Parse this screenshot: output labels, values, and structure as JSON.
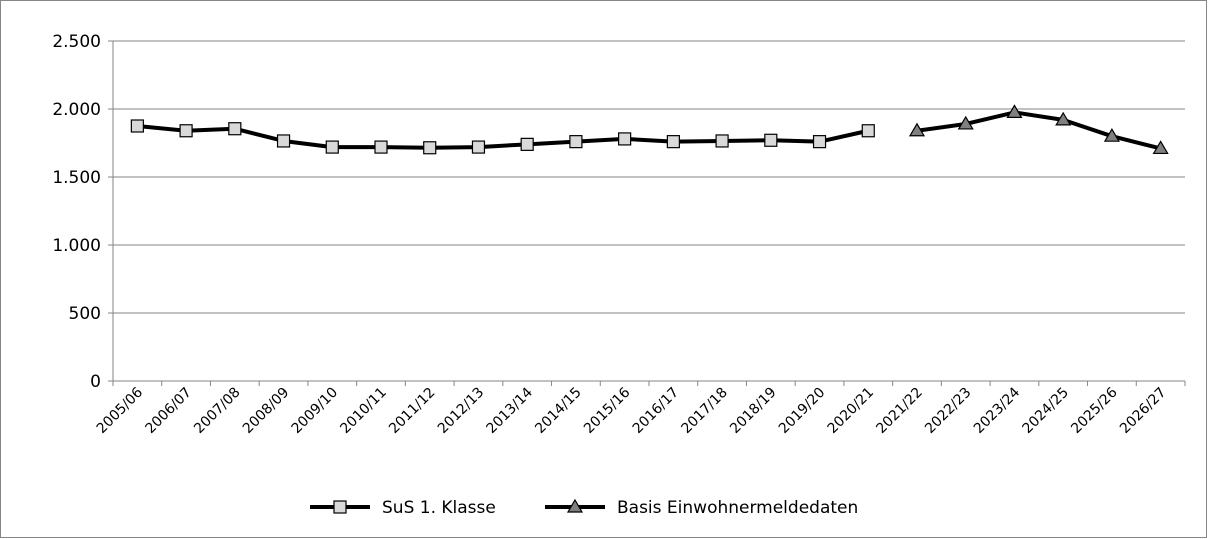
{
  "chart_data": {
    "type": "line",
    "categories": [
      "2005/06",
      "2006/07",
      "2007/08",
      "2008/09",
      "2009/10",
      "2010/11",
      "2011/12",
      "2012/13",
      "2013/14",
      "2014/15",
      "2015/16",
      "2016/17",
      "2017/18",
      "2018/19",
      "2019/20",
      "2020/21",
      "2021/22",
      "2022/23",
      "2023/24",
      "2024/25",
      "2025/26",
      "2026/27"
    ],
    "series": [
      {
        "name": "SuS 1. Klasse",
        "color": "#000000",
        "marker": "square",
        "marker_color": "#d9d9d9",
        "values": [
          1875,
          1840,
          1855,
          1765,
          1720,
          1720,
          1715,
          1720,
          1740,
          1760,
          1780,
          1760,
          1765,
          1770,
          1760,
          1840,
          null,
          null,
          null,
          null,
          null,
          null
        ]
      },
      {
        "name": "Basis Einwohnermeldedaten",
        "color": "#000000",
        "marker": "triangle",
        "marker_color": "#808080",
        "values": [
          null,
          null,
          null,
          null,
          null,
          null,
          null,
          null,
          null,
          null,
          null,
          null,
          null,
          null,
          null,
          null,
          1840,
          1890,
          1975,
          1920,
          1800,
          1710
        ]
      }
    ],
    "ylim": [
      0,
      2500
    ],
    "yticks": [
      0,
      500,
      {
        "value": 1000,
        "label": "1.000"
      },
      {
        "value": 1500,
        "label": "1.500"
      },
      {
        "value": 2000,
        "label": "2.000"
      },
      {
        "value": 2500,
        "label": "2.500"
      }
    ],
    "grid": true,
    "legend": "bottom"
  }
}
